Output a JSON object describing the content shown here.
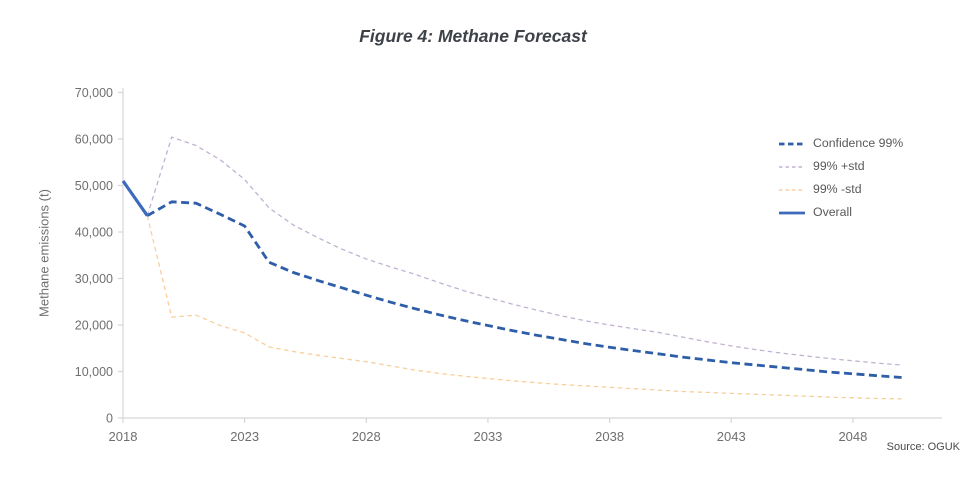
{
  "figure": {
    "title": "Figure 4: Methane Forecast",
    "source": "Source: OGUK"
  },
  "chart_data": {
    "type": "line",
    "title": "Figure 4: Methane Forecast",
    "xlabel": "",
    "ylabel": "Methane emissions (t)",
    "xlim": [
      2018,
      2051.5
    ],
    "ylim": [
      0,
      70000
    ],
    "grid": false,
    "legend_position": "right",
    "x_ticks": [
      {
        "v": 2018,
        "label": "2018"
      },
      {
        "v": 2023,
        "label": "2023"
      },
      {
        "v": 2028,
        "label": "2028"
      },
      {
        "v": 2033,
        "label": "2033"
      },
      {
        "v": 2038,
        "label": "2038"
      },
      {
        "v": 2043,
        "label": "2043"
      },
      {
        "v": 2048,
        "label": "2048"
      }
    ],
    "y_ticks": [
      {
        "v": 0,
        "label": "0"
      },
      {
        "v": 10000,
        "label": "10,000"
      },
      {
        "v": 20000,
        "label": "20,000"
      },
      {
        "v": 30000,
        "label": "30,000"
      },
      {
        "v": 40000,
        "label": "40,000"
      },
      {
        "v": 50000,
        "label": "50,000"
      },
      {
        "v": 60000,
        "label": "60,000"
      },
      {
        "v": 70000,
        "label": "70,000"
      }
    ],
    "series": [
      {
        "name": "Confidence 99%",
        "color": "#2e5ea8",
        "style": "dashed-thick",
        "years": [
          2019,
          2020,
          2021,
          2022,
          2023,
          2024,
          2025,
          2026,
          2027,
          2028,
          2029,
          2030,
          2031,
          2032,
          2033,
          2034,
          2035,
          2036,
          2037,
          2038,
          2039,
          2040,
          2041,
          2042,
          2043,
          2044,
          2045,
          2046,
          2047,
          2048,
          2049,
          2050
        ],
        "values": [
          43500,
          46500,
          46200,
          43800,
          41300,
          33500,
          31300,
          29600,
          28000,
          26400,
          24900,
          23500,
          22200,
          21000,
          19900,
          18800,
          17800,
          16900,
          16000,
          15200,
          14500,
          13800,
          13100,
          12500,
          11900,
          11400,
          10900,
          10400,
          9900,
          9500,
          9100,
          8700
        ]
      },
      {
        "name": "99% +std",
        "color": "#c2b2d2",
        "style": "dashed-thin",
        "years": [
          2019,
          2020,
          2021,
          2022,
          2023,
          2024,
          2025,
          2026,
          2027,
          2028,
          2029,
          2030,
          2031,
          2032,
          2033,
          2034,
          2035,
          2036,
          2037,
          2038,
          2039,
          2040,
          2041,
          2042,
          2043,
          2044,
          2045,
          2046,
          2047,
          2048,
          2049,
          2050
        ],
        "values": [
          43500,
          60400,
          58600,
          55500,
          51300,
          45200,
          41500,
          38800,
          36300,
          34200,
          32500,
          30900,
          29100,
          27400,
          25900,
          24500,
          23200,
          22000,
          20900,
          20000,
          19200,
          18400,
          17400,
          16400,
          15500,
          14700,
          14000,
          13400,
          12800,
          12300,
          11800,
          11400
        ]
      },
      {
        "name": "99% -std",
        "color": "#f8cf9b",
        "style": "dashed-thin",
        "years": [
          2019,
          2020,
          2021,
          2022,
          2023,
          2024,
          2025,
          2026,
          2027,
          2028,
          2029,
          2030,
          2031,
          2032,
          2033,
          2034,
          2035,
          2036,
          2037,
          2038,
          2039,
          2040,
          2041,
          2042,
          2043,
          2044,
          2045,
          2046,
          2047,
          2048,
          2049,
          2050
        ],
        "values": [
          43500,
          21700,
          22100,
          19900,
          18300,
          15300,
          14300,
          13500,
          12800,
          12100,
          11200,
          10300,
          9600,
          9000,
          8500,
          8000,
          7600,
          7200,
          6900,
          6600,
          6300,
          6000,
          5700,
          5500,
          5300,
          5100,
          4900,
          4700,
          4500,
          4350,
          4200,
          4100
        ]
      },
      {
        "name": "Overall",
        "color": "#3d6abd",
        "style": "solid",
        "years": [
          2018,
          2019
        ],
        "values": [
          51000,
          43500
        ]
      }
    ]
  },
  "colors": {
    "axis": "#d7d7d7",
    "tick_text": "#6f6f6f",
    "title_text": "#3d4148",
    "legend_text": "#595959",
    "source_text": "#4a4a4a"
  }
}
